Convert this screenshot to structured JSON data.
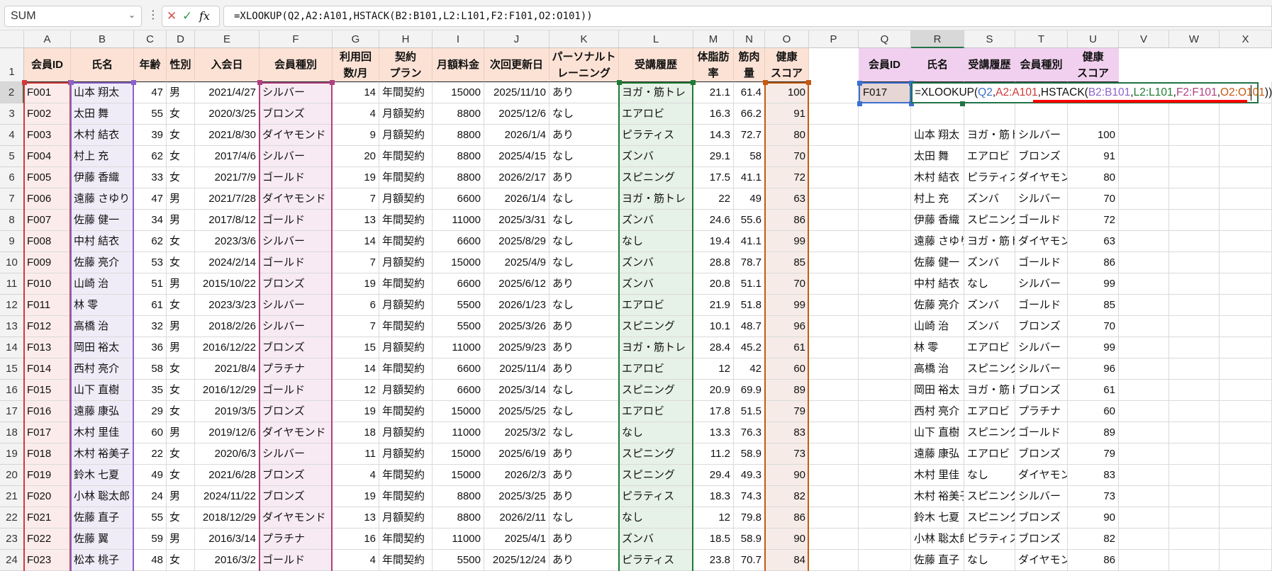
{
  "name_box": {
    "value": "SUM"
  },
  "formula_bar": {
    "cancel_icon": "✕",
    "enter_icon": "✓",
    "fx_label": "fx",
    "value": "=XLOOKUP(Q2,A2:A101,HSTACK(B2:B101,L2:L101,F2:F101,O2:O101))"
  },
  "columns": [
    "A",
    "B",
    "C",
    "D",
    "E",
    "F",
    "G",
    "H",
    "I",
    "J",
    "K",
    "L",
    "M",
    "N",
    "O",
    "P",
    "Q",
    "R",
    "S",
    "T",
    "U",
    "V",
    "W",
    "X"
  ],
  "rows_numbers": [
    "1",
    "2",
    "3",
    "4",
    "5",
    "6",
    "7",
    "8",
    "9",
    "10",
    "11",
    "12",
    "13",
    "14",
    "15",
    "16",
    "17",
    "18",
    "19",
    "20",
    "21",
    "22",
    "23",
    "24"
  ],
  "headers": [
    "会員ID",
    "氏名",
    "年齢",
    "性別",
    "入会日",
    "会員種別",
    "利用回\n数/月",
    "契約\nプラン",
    "月額料金",
    "次回更新日",
    "パーソナルト\nレーニング",
    "受講履歴",
    "体脂肪\n率",
    "筋肉\n量",
    "健康\nスコア"
  ],
  "members": [
    [
      "F001",
      "山本 翔太",
      "47",
      "男",
      "2021/4/27",
      "シルバー",
      "14",
      "年間契約",
      "15000",
      "2025/11/10",
      "あり",
      "ヨガ・筋トレ",
      "21.1",
      "61.4",
      "100"
    ],
    [
      "F002",
      "太田 舞",
      "55",
      "女",
      "2020/3/25",
      "ブロンズ",
      "4",
      "月額契約",
      "8800",
      "2025/12/6",
      "なし",
      "エアロビ",
      "16.3",
      "66.2",
      "91"
    ],
    [
      "F003",
      "木村 結衣",
      "39",
      "女",
      "2021/8/30",
      "ダイヤモンド",
      "9",
      "月額契約",
      "8800",
      "2026/1/4",
      "あり",
      "ピラティス",
      "14.3",
      "72.7",
      "80"
    ],
    [
      "F004",
      "村上 充",
      "62",
      "女",
      "2017/4/6",
      "シルバー",
      "20",
      "年間契約",
      "8800",
      "2025/4/15",
      "なし",
      "ズンバ",
      "29.1",
      "58",
      "70"
    ],
    [
      "F005",
      "伊藤 香織",
      "33",
      "女",
      "2021/7/9",
      "ゴールド",
      "19",
      "年間契約",
      "8800",
      "2026/2/17",
      "あり",
      "スピニング",
      "17.5",
      "41.1",
      "72"
    ],
    [
      "F006",
      "遠藤 さゆり",
      "47",
      "男",
      "2021/7/28",
      "ダイヤモンド",
      "7",
      "月額契約",
      "6600",
      "2026/1/4",
      "なし",
      "ヨガ・筋トレ",
      "22",
      "49",
      "63"
    ],
    [
      "F007",
      "佐藤 健一",
      "34",
      "男",
      "2017/8/12",
      "ゴールド",
      "13",
      "年間契約",
      "11000",
      "2025/3/31",
      "なし",
      "ズンバ",
      "24.6",
      "55.6",
      "86"
    ],
    [
      "F008",
      "中村 結衣",
      "62",
      "女",
      "2023/3/6",
      "シルバー",
      "14",
      "年間契約",
      "6600",
      "2025/8/29",
      "なし",
      "なし",
      "19.4",
      "41.1",
      "99"
    ],
    [
      "F009",
      "佐藤 亮介",
      "53",
      "女",
      "2024/2/14",
      "ゴールド",
      "7",
      "月額契約",
      "15000",
      "2025/4/9",
      "なし",
      "ズンバ",
      "28.8",
      "78.7",
      "85"
    ],
    [
      "F010",
      "山崎 治",
      "51",
      "男",
      "2015/10/22",
      "ブロンズ",
      "19",
      "年間契約",
      "6600",
      "2025/6/12",
      "あり",
      "ズンバ",
      "20.8",
      "51.1",
      "70"
    ],
    [
      "F011",
      "林 零",
      "61",
      "女",
      "2023/3/23",
      "シルバー",
      "6",
      "月額契約",
      "5500",
      "2026/1/23",
      "なし",
      "エアロビ",
      "21.9",
      "51.8",
      "99"
    ],
    [
      "F012",
      "高橋 治",
      "32",
      "男",
      "2018/2/26",
      "シルバー",
      "7",
      "年間契約",
      "5500",
      "2025/3/26",
      "あり",
      "スピニング",
      "10.1",
      "48.7",
      "96"
    ],
    [
      "F013",
      "岡田 裕太",
      "36",
      "男",
      "2016/12/22",
      "ブロンズ",
      "15",
      "月額契約",
      "11000",
      "2025/9/23",
      "あり",
      "ヨガ・筋トレ",
      "28.4",
      "45.2",
      "61"
    ],
    [
      "F014",
      "西村 亮介",
      "58",
      "女",
      "2021/8/4",
      "プラチナ",
      "14",
      "年間契約",
      "6600",
      "2025/11/4",
      "あり",
      "エアロビ",
      "12",
      "42",
      "60"
    ],
    [
      "F015",
      "山下 直樹",
      "35",
      "女",
      "2016/12/29",
      "ゴールド",
      "12",
      "月額契約",
      "6600",
      "2025/3/14",
      "なし",
      "スピニング",
      "20.9",
      "69.9",
      "89"
    ],
    [
      "F016",
      "遠藤 康弘",
      "29",
      "女",
      "2019/3/5",
      "ブロンズ",
      "19",
      "年間契約",
      "15000",
      "2025/5/25",
      "なし",
      "エアロビ",
      "17.8",
      "51.5",
      "79"
    ],
    [
      "F017",
      "木村 里佳",
      "60",
      "男",
      "2019/12/6",
      "ダイヤモンド",
      "18",
      "月額契約",
      "11000",
      "2025/3/2",
      "なし",
      "なし",
      "13.3",
      "76.3",
      "83"
    ],
    [
      "F018",
      "木村 裕美子",
      "22",
      "女",
      "2020/6/3",
      "シルバー",
      "11",
      "月額契約",
      "15000",
      "2025/6/19",
      "あり",
      "スピニング",
      "11.2",
      "58.9",
      "73"
    ],
    [
      "F019",
      "鈴木 七夏",
      "49",
      "女",
      "2021/6/28",
      "ブロンズ",
      "4",
      "年間契約",
      "15000",
      "2026/2/3",
      "あり",
      "スピニング",
      "29.4",
      "49.3",
      "90"
    ],
    [
      "F020",
      "小林 聡太郎",
      "24",
      "男",
      "2024/11/22",
      "ブロンズ",
      "19",
      "年間契約",
      "8800",
      "2025/3/25",
      "あり",
      "ピラティス",
      "18.3",
      "74.3",
      "82"
    ],
    [
      "F021",
      "佐藤 直子",
      "55",
      "女",
      "2018/12/29",
      "ダイヤモンド",
      "13",
      "月額契約",
      "8800",
      "2026/2/11",
      "なし",
      "なし",
      "12",
      "79.8",
      "86"
    ],
    [
      "F022",
      "佐藤 翼",
      "59",
      "男",
      "2016/3/14",
      "プラチナ",
      "16",
      "年間契約",
      "11000",
      "2025/4/1",
      "あり",
      "ズンバ",
      "18.5",
      "58.9",
      "90"
    ],
    [
      "F023",
      "松本 桃子",
      "48",
      "女",
      "2016/3/2",
      "ゴールド",
      "4",
      "年間契約",
      "5500",
      "2025/12/24",
      "あり",
      "ピラティス",
      "23.8",
      "70.7",
      "84"
    ]
  ],
  "lookup": {
    "headers": [
      "会員ID",
      "氏名",
      "受講履歴",
      "会員種別",
      "健康\nスコア"
    ],
    "id_value": "F017",
    "formula_parts": [
      {
        "text": "=XLOOKUP(",
        "color": "#111111"
      },
      {
        "text": "Q2",
        "color": "#3a6fc4"
      },
      {
        "text": ",",
        "color": "#111111"
      },
      {
        "text": "A2:A101",
        "color": "#d03a3a"
      },
      {
        "text": ",HSTACK(",
        "color": "#111111"
      },
      {
        "text": "B2:B101",
        "color": "#8a63c9"
      },
      {
        "text": ",",
        "color": "#111111"
      },
      {
        "text": "L2:L101",
        "color": "#1e7b34"
      },
      {
        "text": ",",
        "color": "#111111"
      },
      {
        "text": "F2:F101",
        "color": "#b0407f"
      },
      {
        "text": ",",
        "color": "#111111"
      },
      {
        "text": "O2:O101",
        "color": "#c55a11"
      },
      {
        "text": "))",
        "color": "#111111"
      }
    ],
    "spill": [
      [
        "山本 翔太",
        "ヨガ・筋トレ",
        "シルバー",
        "100"
      ],
      [
        "太田 舞",
        "エアロビ",
        "ブロンズ",
        "91"
      ],
      [
        "木村 結衣",
        "ピラティス",
        "ダイヤモンド",
        "80"
      ],
      [
        "村上 充",
        "ズンバ",
        "シルバー",
        "70"
      ],
      [
        "伊藤 香織",
        "スピニング",
        "ゴールド",
        "72"
      ],
      [
        "遠藤 さゆり",
        "ヨガ・筋トレ",
        "ダイヤモンド",
        "63"
      ],
      [
        "佐藤 健一",
        "ズンバ",
        "ゴールド",
        "86"
      ],
      [
        "中村 結衣",
        "なし",
        "シルバー",
        "99"
      ],
      [
        "佐藤 亮介",
        "ズンバ",
        "ゴールド",
        "85"
      ],
      [
        "山崎 治",
        "ズンバ",
        "ブロンズ",
        "70"
      ],
      [
        "林 零",
        "エアロビ",
        "シルバー",
        "99"
      ],
      [
        "高橋 治",
        "スピニング",
        "シルバー",
        "96"
      ],
      [
        "岡田 裕太",
        "ヨガ・筋トレ",
        "ブロンズ",
        "61"
      ],
      [
        "西村 亮介",
        "エアロビ",
        "プラチナ",
        "60"
      ],
      [
        "山下 直樹",
        "スピニング",
        "ゴールド",
        "89"
      ],
      [
        "遠藤 康弘",
        "エアロビ",
        "ブロンズ",
        "79"
      ],
      [
        "木村 里佳",
        "なし",
        "ダイヤモンド",
        "83"
      ],
      [
        "木村 裕美子",
        "スピニング",
        "シルバー",
        "73"
      ],
      [
        "鈴木 七夏",
        "スピニング",
        "ブロンズ",
        "90"
      ],
      [
        "小林 聡太郎",
        "ピラティス",
        "ブロンズ",
        "82"
      ],
      [
        "佐藤 直子",
        "なし",
        "ダイヤモンド",
        "86"
      ]
    ]
  },
  "colors": {
    "ref_A": "#d03a3a",
    "ref_B": "#8a63c9",
    "ref_F": "#b0407f",
    "ref_L": "#1e7b34",
    "ref_O": "#c55a11",
    "ref_Q": "#3b6fd0",
    "underline": "#ff0000"
  }
}
